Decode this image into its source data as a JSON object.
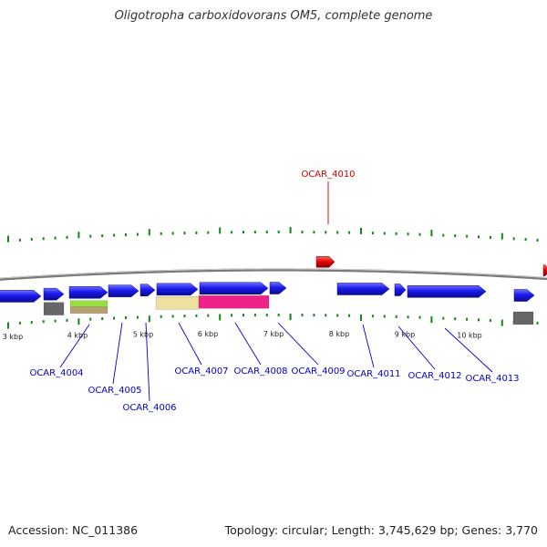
{
  "title": "Oligotropha carboxidovorans OM5, complete genome",
  "footer": {
    "accession": "Accession: NC_011386",
    "summary": "Topology: circular; Length: 3,745,629 bp; Genes: 3,770"
  },
  "colors": {
    "backbone": "#7a7a7a",
    "gene_forward": "#1a1aee",
    "gene_reverse": "#dd0000",
    "ticks": "#118811",
    "label_forward": "#0000cc",
    "label_reverse": "#cc0000"
  },
  "scale_labels": [
    "3 kbp",
    "4 kbp",
    "5 kbp",
    "6 kbp",
    "7 kbp",
    "8 kbp",
    "9 kbp",
    "10 kbp"
  ],
  "gene_labels": [
    {
      "id": "OCAR_4004",
      "strand": "forward"
    },
    {
      "id": "OCAR_4005",
      "strand": "forward"
    },
    {
      "id": "OCAR_4006",
      "strand": "forward"
    },
    {
      "id": "OCAR_4007",
      "strand": "forward"
    },
    {
      "id": "OCAR_4008",
      "strand": "forward"
    },
    {
      "id": "OCAR_4009",
      "strand": "forward"
    },
    {
      "id": "OCAR_4010",
      "strand": "reverse"
    },
    {
      "id": "OCAR_4011",
      "strand": "forward"
    },
    {
      "id": "OCAR_4012",
      "strand": "forward"
    },
    {
      "id": "OCAR_4013",
      "strand": "forward"
    }
  ],
  "feature_colors": {
    "gray": "#666666",
    "green": "#99dd44",
    "tan": "#b8a070",
    "yellow": "#eee0a0",
    "magenta": "#ee2288"
  }
}
